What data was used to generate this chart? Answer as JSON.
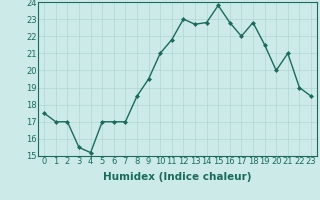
{
  "xlabel": "Humidex (Indice chaleur)",
  "x": [
    0,
    1,
    2,
    3,
    4,
    5,
    6,
    7,
    8,
    9,
    10,
    11,
    12,
    13,
    14,
    15,
    16,
    17,
    18,
    19,
    20,
    21,
    22,
    23
  ],
  "y": [
    17.5,
    17.0,
    17.0,
    15.5,
    15.2,
    17.0,
    17.0,
    17.0,
    18.5,
    19.5,
    21.0,
    21.8,
    23.0,
    22.7,
    22.8,
    23.8,
    22.8,
    22.0,
    22.8,
    21.5,
    20.0,
    21.0,
    19.0,
    18.5
  ],
  "line_color": "#1a6b5e",
  "marker": "D",
  "marker_size": 2.0,
  "bg_color": "#cceae7",
  "grid_color": "#b0d8d4",
  "ylim": [
    15,
    24
  ],
  "yticks": [
    15,
    16,
    17,
    18,
    19,
    20,
    21,
    22,
    23,
    24
  ],
  "xticks": [
    0,
    1,
    2,
    3,
    4,
    5,
    6,
    7,
    8,
    9,
    10,
    11,
    12,
    13,
    14,
    15,
    16,
    17,
    18,
    19,
    20,
    21,
    22,
    23
  ],
  "tick_fontsize": 6.0,
  "xlabel_fontsize": 7.5,
  "line_width": 1.0
}
